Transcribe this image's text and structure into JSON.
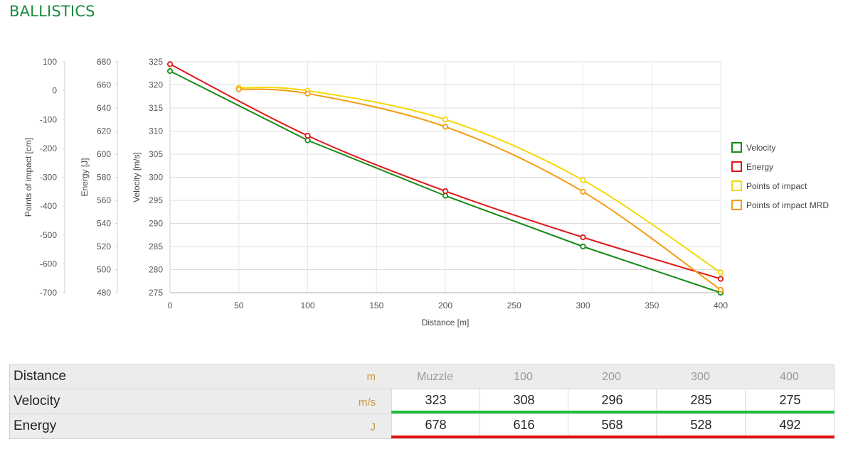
{
  "title": "BALLISTICS",
  "chart_data": {
    "type": "line",
    "xlabel": "Distance [m]",
    "x_ticks": [
      0,
      50,
      100,
      150,
      200,
      250,
      300,
      350,
      400
    ],
    "xlim": [
      0,
      400
    ],
    "axes": [
      {
        "id": "poi",
        "label": "Points of impact [cm]",
        "min": -700,
        "max": 100,
        "ticks": [
          100,
          0,
          -100,
          -200,
          -300,
          -400,
          -500,
          -600,
          -700
        ]
      },
      {
        "id": "energy",
        "label": "Energy [J]",
        "min": 480,
        "max": 680,
        "ticks": [
          680,
          660,
          640,
          620,
          600,
          580,
          560,
          540,
          520,
          500,
          480
        ]
      },
      {
        "id": "velocity",
        "label": "Velocity [m/s]",
        "min": 275,
        "max": 325,
        "ticks": [
          325,
          320,
          315,
          310,
          305,
          300,
          295,
          290,
          285,
          280,
          275
        ]
      }
    ],
    "series": [
      {
        "name": "Velocity",
        "axis": "velocity",
        "color": "#188a18",
        "points": [
          [
            0,
            323
          ],
          [
            100,
            308
          ],
          [
            200,
            296
          ],
          [
            300,
            285
          ],
          [
            400,
            275
          ]
        ]
      },
      {
        "name": "Energy",
        "axis": "energy",
        "color": "#e01818",
        "points": [
          [
            0,
            678
          ],
          [
            100,
            616
          ],
          [
            200,
            568
          ],
          [
            300,
            528
          ],
          [
            400,
            492
          ]
        ]
      },
      {
        "name": "Points of impact",
        "axis": "poi",
        "color": "#f5d800",
        "points": [
          [
            50,
            10
          ],
          [
            100,
            0
          ],
          [
            200,
            -100
          ],
          [
            300,
            -310
          ],
          [
            400,
            -630
          ]
        ]
      },
      {
        "name": "Points of impact MRD",
        "axis": "poi",
        "color": "#f49c10",
        "points": [
          [
            50,
            5
          ],
          [
            100,
            -10
          ],
          [
            200,
            -125
          ],
          [
            300,
            -350
          ],
          [
            400,
            -690
          ]
        ]
      }
    ],
    "legend_position": "right",
    "grid": true
  },
  "table": {
    "columns": [
      "Muzzle",
      "100",
      "200",
      "300",
      "400"
    ],
    "rows": [
      {
        "label": "Distance",
        "unit": "m"
      },
      {
        "label": "Velocity",
        "unit": "m/s",
        "values": [
          "323",
          "308",
          "296",
          "285",
          "275"
        ]
      },
      {
        "label": "Energy",
        "unit": "J",
        "values": [
          "678",
          "616",
          "568",
          "528",
          "492"
        ]
      }
    ]
  }
}
